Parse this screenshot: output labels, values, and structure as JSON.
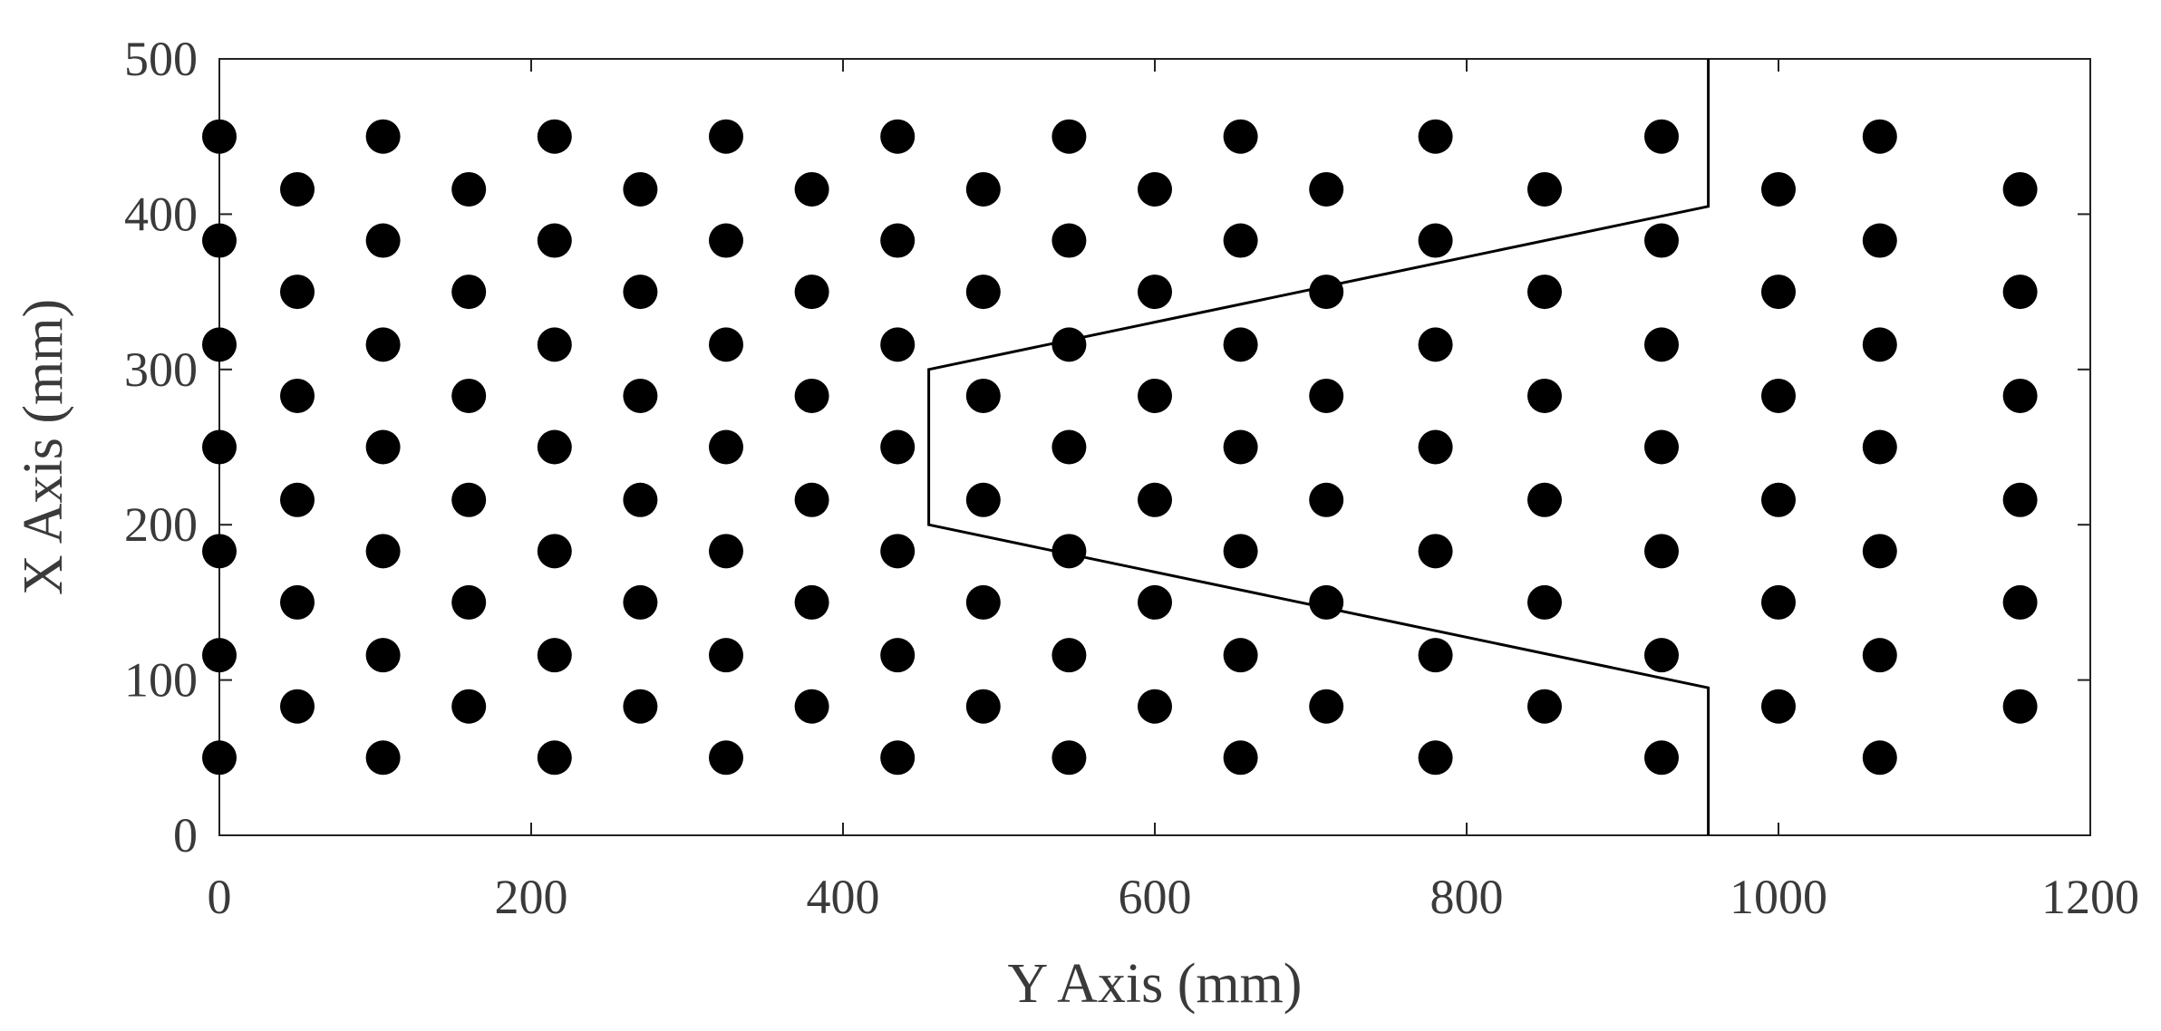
{
  "chart_data": {
    "type": "scatter",
    "title": "",
    "xlabel": "Y Axis (mm)",
    "ylabel": "X Axis (mm)",
    "xlim": [
      0,
      1200
    ],
    "ylim": [
      0,
      500
    ],
    "xticks": [
      0,
      200,
      400,
      600,
      800,
      1000,
      1200
    ],
    "yticks": [
      0,
      100,
      200,
      300,
      400,
      500
    ],
    "grid": false,
    "legend": "none",
    "colors": {
      "points": "#000000",
      "outline": "#000000",
      "text": "#3a3a3a",
      "frame": "#222222"
    },
    "outline": [
      [
        955,
        500
      ],
      [
        955,
        405
      ],
      [
        455,
        300
      ],
      [
        455,
        200
      ],
      [
        955,
        95
      ],
      [
        955,
        0
      ]
    ],
    "points": [
      [
        0,
        50
      ],
      [
        0,
        116
      ],
      [
        0,
        183
      ],
      [
        0,
        250
      ],
      [
        0,
        316
      ],
      [
        0,
        383
      ],
      [
        0,
        450
      ],
      [
        50,
        83
      ],
      [
        50,
        150
      ],
      [
        50,
        216
      ],
      [
        50,
        283
      ],
      [
        50,
        350
      ],
      [
        50,
        416
      ],
      [
        105,
        50
      ],
      [
        105,
        116
      ],
      [
        105,
        183
      ],
      [
        105,
        250
      ],
      [
        105,
        316
      ],
      [
        105,
        383
      ],
      [
        105,
        450
      ],
      [
        160,
        83
      ],
      [
        160,
        150
      ],
      [
        160,
        216
      ],
      [
        160,
        283
      ],
      [
        160,
        350
      ],
      [
        160,
        416
      ],
      [
        215,
        50
      ],
      [
        215,
        116
      ],
      [
        215,
        183
      ],
      [
        215,
        250
      ],
      [
        215,
        316
      ],
      [
        215,
        383
      ],
      [
        215,
        450
      ],
      [
        270,
        83
      ],
      [
        270,
        150
      ],
      [
        270,
        216
      ],
      [
        270,
        283
      ],
      [
        270,
        350
      ],
      [
        270,
        416
      ],
      [
        325,
        50
      ],
      [
        325,
        116
      ],
      [
        325,
        183
      ],
      [
        325,
        250
      ],
      [
        325,
        316
      ],
      [
        325,
        383
      ],
      [
        325,
        450
      ],
      [
        380,
        83
      ],
      [
        380,
        150
      ],
      [
        380,
        216
      ],
      [
        380,
        283
      ],
      [
        380,
        350
      ],
      [
        380,
        416
      ],
      [
        435,
        50
      ],
      [
        435,
        116
      ],
      [
        435,
        183
      ],
      [
        435,
        250
      ],
      [
        435,
        316
      ],
      [
        435,
        383
      ],
      [
        435,
        450
      ],
      [
        490,
        83
      ],
      [
        490,
        150
      ],
      [
        490,
        216
      ],
      [
        490,
        283
      ],
      [
        490,
        350
      ],
      [
        490,
        416
      ],
      [
        545,
        50
      ],
      [
        545,
        116
      ],
      [
        545,
        183
      ],
      [
        545,
        250
      ],
      [
        545,
        316
      ],
      [
        545,
        383
      ],
      [
        545,
        450
      ],
      [
        600,
        83
      ],
      [
        600,
        150
      ],
      [
        600,
        216
      ],
      [
        600,
        283
      ],
      [
        600,
        350
      ],
      [
        600,
        416
      ],
      [
        655,
        50
      ],
      [
        655,
        116
      ],
      [
        655,
        183
      ],
      [
        655,
        250
      ],
      [
        655,
        316
      ],
      [
        655,
        383
      ],
      [
        655,
        450
      ],
      [
        710,
        83
      ],
      [
        710,
        150
      ],
      [
        710,
        216
      ],
      [
        710,
        283
      ],
      [
        710,
        350
      ],
      [
        710,
        416
      ],
      [
        780,
        50
      ],
      [
        780,
        116
      ],
      [
        780,
        183
      ],
      [
        780,
        250
      ],
      [
        780,
        316
      ],
      [
        780,
        383
      ],
      [
        780,
        450
      ],
      [
        850,
        83
      ],
      [
        850,
        150
      ],
      [
        850,
        216
      ],
      [
        850,
        283
      ],
      [
        850,
        350
      ],
      [
        850,
        416
      ],
      [
        925,
        50
      ],
      [
        925,
        116
      ],
      [
        925,
        183
      ],
      [
        925,
        250
      ],
      [
        925,
        316
      ],
      [
        925,
        383
      ],
      [
        925,
        450
      ],
      [
        1000,
        83
      ],
      [
        1000,
        150
      ],
      [
        1000,
        216
      ],
      [
        1000,
        283
      ],
      [
        1000,
        350
      ],
      [
        1000,
        416
      ],
      [
        1065,
        50
      ],
      [
        1065,
        116
      ],
      [
        1065,
        183
      ],
      [
        1065,
        250
      ],
      [
        1065,
        316
      ],
      [
        1065,
        383
      ],
      [
        1065,
        450
      ],
      [
        1155,
        83
      ],
      [
        1155,
        150
      ],
      [
        1155,
        216
      ],
      [
        1155,
        283
      ],
      [
        1155,
        350
      ],
      [
        1155,
        416
      ]
    ]
  }
}
